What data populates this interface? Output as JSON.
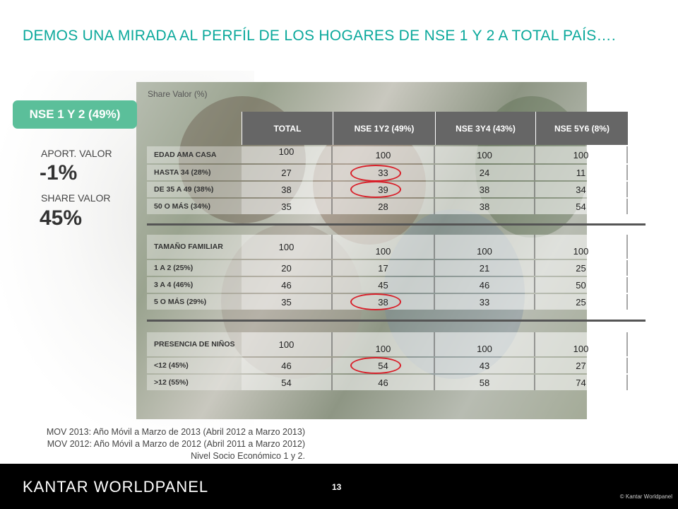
{
  "title": "DEMOS UNA MIRADA AL PERFÍL DE LOS HOGARES DE NSE 1 Y 2  A TOTAL PAÍS….",
  "share_label": "Share Valor (%)",
  "badge": "NSE 1 Y 2 (49%)",
  "kpis": {
    "aport_label": "APORT. VALOR",
    "aport_value": "-1%",
    "share_label": "SHARE VALOR",
    "share_value": "45%"
  },
  "columns": [
    "TOTAL",
    "NSE 1Y2 (49%)",
    "NSE 3Y4 (43%)",
    "NSE 5Y6 (8%)"
  ],
  "sections": [
    {
      "rows": [
        {
          "label": "EDAD AMA CASA",
          "values": [
            "100",
            "100",
            "100",
            "100"
          ]
        },
        {
          "label": "HASTA  34 (28%)",
          "values": [
            "27",
            "33",
            "24",
            "11"
          ]
        },
        {
          "label": "DE 35 A 49 (38%)",
          "values": [
            "38",
            "39",
            "38",
            "34"
          ]
        },
        {
          "label": "50 O MÁS (34%)",
          "values": [
            "35",
            "28",
            "38",
            "54"
          ]
        }
      ]
    },
    {
      "rows": [
        {
          "label": "TAMAÑO FAMILIAR",
          "values": [
            "100",
            "100",
            "100",
            "100"
          ]
        },
        {
          "label": "1 A 2 (25%)",
          "values": [
            "20",
            "17",
            "21",
            "25"
          ]
        },
        {
          "label": "3 A 4 (46%)",
          "values": [
            "46",
            "45",
            "46",
            "50"
          ]
        },
        {
          "label": "5 O MÁS (29%)",
          "values": [
            "35",
            "38",
            "33",
            "25"
          ]
        }
      ]
    },
    {
      "rows": [
        {
          "label": "PRESENCIA DE NIÑOS",
          "values": [
            "100",
            "100",
            "100",
            "100"
          ]
        },
        {
          "label": "<12 (45%)",
          "values": [
            "46",
            "54",
            "43",
            "27"
          ]
        },
        {
          "label": ">12 (55%)",
          "values": [
            "54",
            "46",
            "58",
            "74"
          ]
        }
      ]
    }
  ],
  "notes": [
    "MOV 2013: Año Móvil a Marzo de 2013 (Abril 2012 a Marzo 2013)",
    "MOV 2012: Año Móvil a Marzo de 2012 (Abril 2011 a Marzo 2012)",
    "Nivel Socio Económico 1 y 2."
  ],
  "footer": {
    "logo": "KANTAR WORLDPANEL",
    "page_number": "13",
    "copyright": "© Kantar Worldpanel"
  },
  "colors": {
    "title": "#0aa89b",
    "badge": "#5bbf9a",
    "header": "#666666",
    "highlight": "#d8202a"
  }
}
